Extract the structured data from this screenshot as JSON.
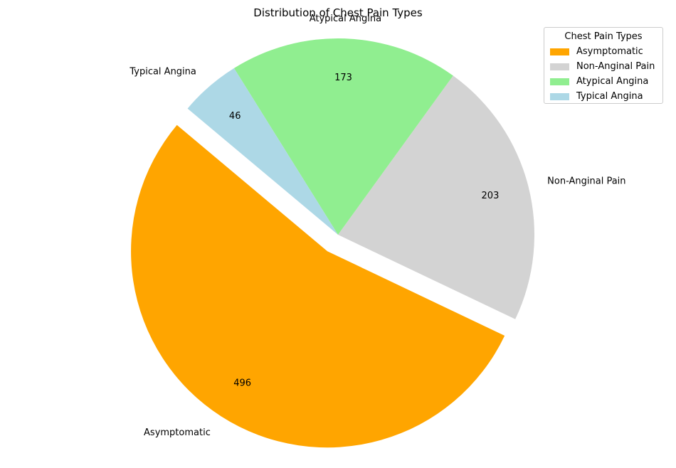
{
  "chart_data": {
    "type": "pie",
    "title": "Distribution of Chest Pain Types",
    "start_angle_deg": 140,
    "explode": [
      "Asymptomatic"
    ],
    "slices": [
      {
        "label": "Asymptomatic",
        "value": 496,
        "color": "#ffa500"
      },
      {
        "label": "Non-Anginal Pain",
        "value": 203,
        "color": "#d3d3d3"
      },
      {
        "label": "Atypical Angina",
        "value": 173,
        "color": "#90ee90"
      },
      {
        "label": "Typical Angina",
        "value": 46,
        "color": "#add8e6"
      }
    ],
    "legend": {
      "title": "Chest Pain Types",
      "placement": "top-right",
      "entries": [
        "Asymptomatic",
        "Non-Anginal Pain",
        "Atypical Angina",
        "Typical Angina"
      ]
    }
  }
}
